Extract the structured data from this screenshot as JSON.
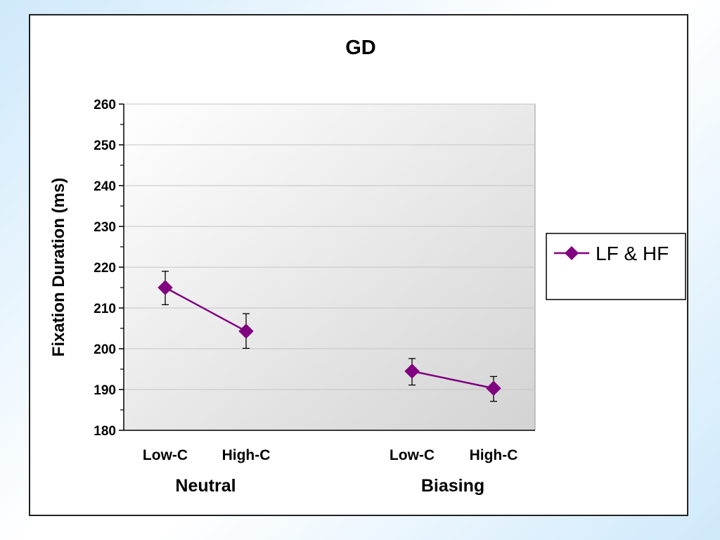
{
  "chart_data": {
    "type": "line",
    "title": "GD",
    "ylabel": "Fixation Duration (ms)",
    "xlabel": "",
    "ylim": [
      180,
      260
    ],
    "y_ticks": [
      180,
      190,
      200,
      210,
      220,
      230,
      240,
      250,
      260
    ],
    "y_minor_step": 5,
    "grid": true,
    "legend_position": "right",
    "groups": [
      {
        "label": "Neutral",
        "categories": [
          "Low-C",
          "High-C"
        ]
      },
      {
        "label": "Biasing",
        "categories": [
          "Low-C",
          "High-C"
        ]
      }
    ],
    "series": [
      {
        "name": "LF & HF",
        "color": "#800080",
        "marker": "diamond",
        "segments": [
          [
            {
              "category": "Low-C",
              "value": 215,
              "err_low": 210.8,
              "err_high": 219
            },
            {
              "category": "High-C",
              "value": 204.3,
              "err_low": 200.1,
              "err_high": 208.6
            }
          ],
          [
            {
              "category": "Low-C",
              "value": 194.5,
              "err_low": 191.1,
              "err_high": 197.6
            },
            {
              "category": "High-C",
              "value": 190.3,
              "err_low": 187.1,
              "err_high": 193.2
            }
          ]
        ]
      }
    ]
  }
}
